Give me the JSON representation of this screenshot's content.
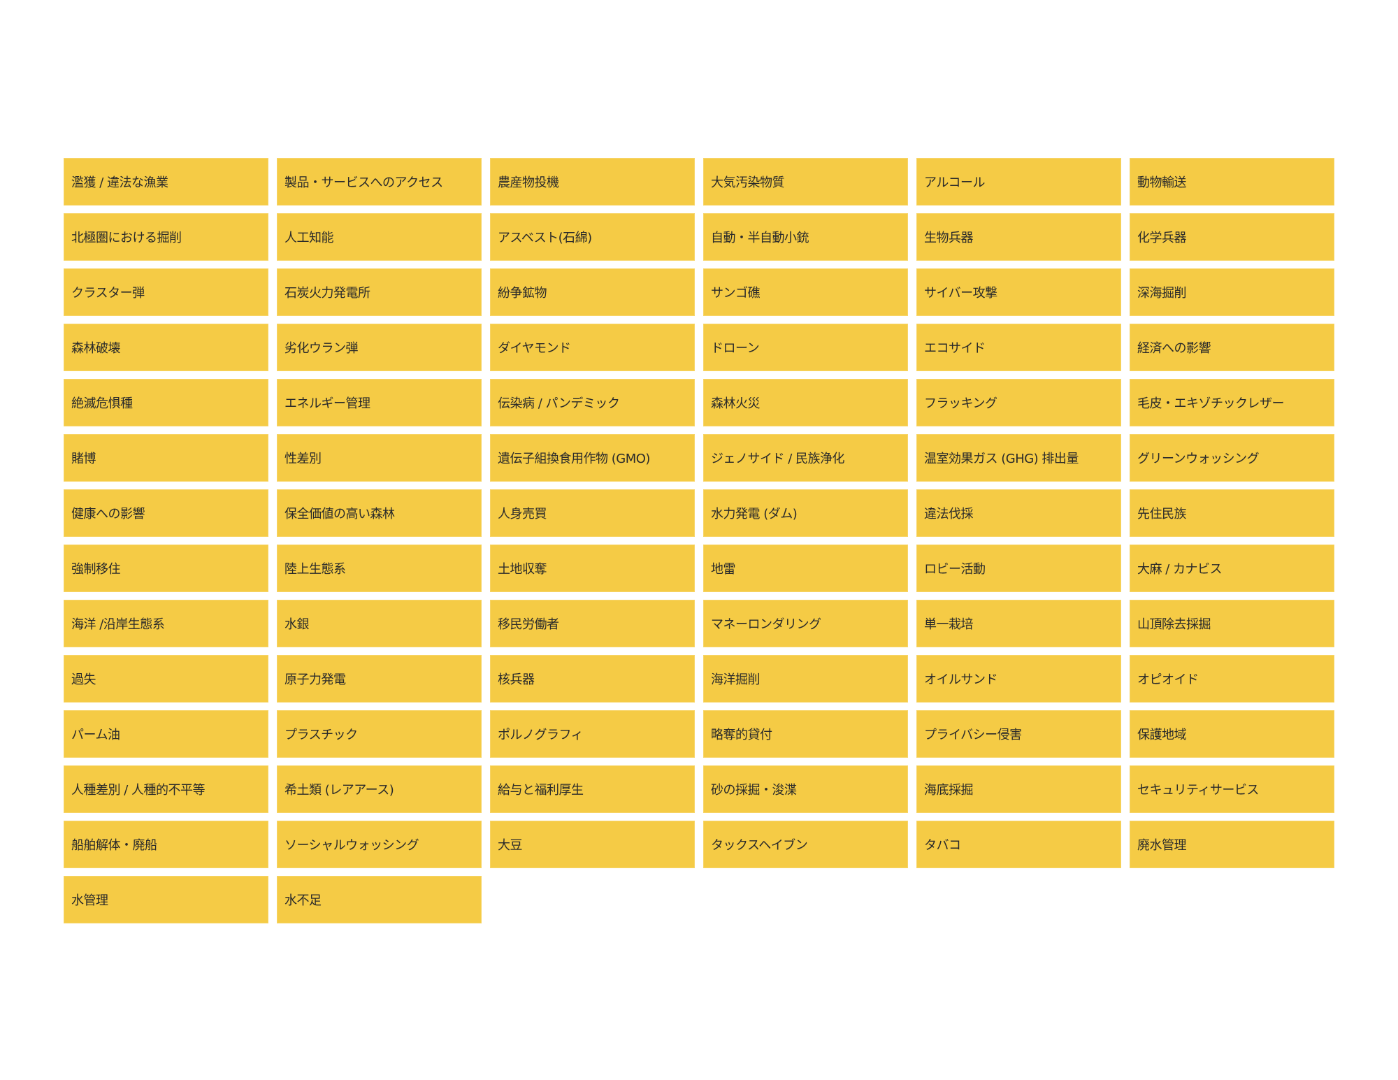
{
  "colors": {
    "tile": "#F5CB45",
    "text": "#2a2a2a",
    "background": "#FFFFFF"
  },
  "items": [
    "濫獲 / 違法な漁業",
    "製品・サービスへのアクセス",
    "農産物投機",
    "大気汚染物質",
    "アルコール",
    "動物輸送",
    "北極圏における掘削",
    "人工知能",
    "アスベスト(石綿)",
    "自動・半自動小銃",
    "生物兵器",
    "化学兵器",
    "クラスター弾",
    "石炭火力発電所",
    "紛争鉱物",
    "サンゴ礁",
    "サイバー攻撃",
    "深海掘削",
    "森林破壊",
    "劣化ウラン弾",
    "ダイヤモンド",
    "ドローン",
    "エコサイド",
    "経済への影響",
    "絶滅危惧種",
    "エネルギー管理",
    "伝染病 / パンデミック",
    "森林火災",
    "フラッキング",
    "毛皮・エキゾチックレザー",
    "賭博",
    "性差別",
    "遺伝子組換食用作物 (GMO)",
    "ジェノサイド / 民族浄化",
    "温室効果ガス (GHG) 排出量",
    "グリーンウォッシング",
    "健康への影響",
    "保全価値の高い森林",
    "人身売買",
    "水力発電 (ダム)",
    "違法伐採",
    "先住民族",
    "強制移住",
    "陸上生態系",
    "土地収奪",
    "地雷",
    "ロビー活動",
    "大麻 / カナビス",
    "海洋 /沿岸生態系",
    "水銀",
    "移民労働者",
    "マネーロンダリング",
    "単一栽培",
    "山頂除去採掘",
    "過失",
    "原子力発電",
    "核兵器",
    "海洋掘削",
    "オイルサンド",
    "オピオイド",
    "パーム油",
    "プラスチック",
    "ポルノグラフィ",
    "略奪的貸付",
    "プライバシー侵害",
    "保護地域",
    "人種差別 / 人種的不平等",
    "希土類 (レアアース)",
    "給与と福利厚生",
    "砂の採掘・浚渫",
    "海底採掘",
    "セキュリティサービス",
    "船舶解体・廃船",
    "ソーシャルウォッシング",
    "大豆",
    "タックスヘイブン",
    "タバコ",
    "廃水管理",
    "水管理",
    "水不足"
  ]
}
